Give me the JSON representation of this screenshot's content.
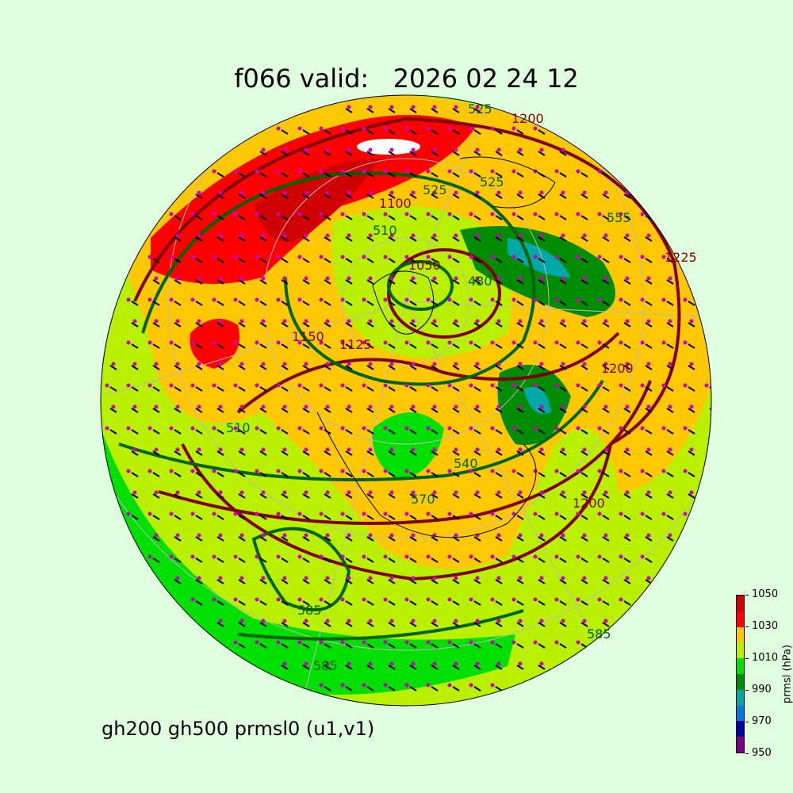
{
  "title": "f066 valid:   2026 02 24 12",
  "subtitle": "gh200 gh500 prmsl0 (u1,v1)",
  "colorbar": {
    "label": "prmsl (hPa)",
    "ticks": [
      "950",
      "970",
      "990",
      "1010",
      "1030",
      "1050"
    ],
    "colors": [
      "#7a0080",
      "#0000a0",
      "#0078e0",
      "#00a8a8",
      "#008c00",
      "#00e000",
      "#b8f000",
      "#ffc800",
      "#ff0000",
      "#d00000"
    ]
  },
  "contour_labels": {
    "gh500": [
      "525",
      "510",
      "525",
      "480",
      "540",
      "570",
      "585",
      "585",
      "585",
      "510",
      "555",
      "525"
    ],
    "gh200": [
      "1200",
      "1225",
      "1100",
      "1050",
      "1150",
      "1125",
      "1200",
      "1200"
    ]
  },
  "colors": {
    "gh500": "#006400",
    "gh200": "#800000",
    "wind_points": "#cc00cc",
    "background": "#dfffdf"
  }
}
